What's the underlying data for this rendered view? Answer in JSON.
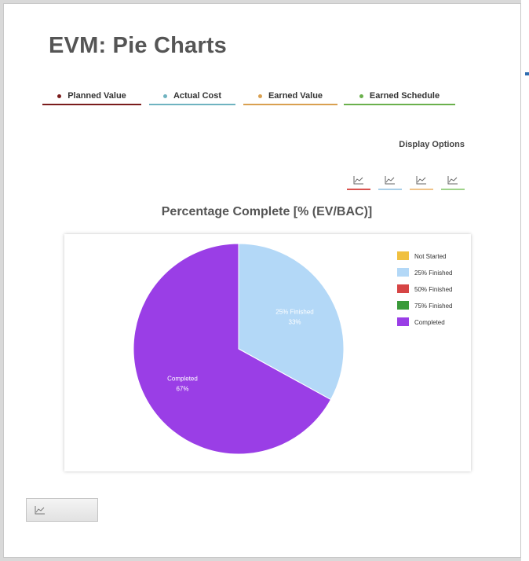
{
  "page": {
    "title": "EVM: Pie Charts"
  },
  "legend_tabs": [
    {
      "label": "Planned Value",
      "color": "#7a1c1c"
    },
    {
      "label": "Actual Cost",
      "color": "#6fb3c0"
    },
    {
      "label": "Earned Value",
      "color": "#d9a050"
    },
    {
      "label": "Earned Schedule",
      "color": "#6ab04c"
    }
  ],
  "display_options": {
    "label": "Display Options",
    "buttons": [
      {
        "icon": "line-chart-icon",
        "color": "#d9534f"
      },
      {
        "icon": "line-chart-icon",
        "color": "#a9cfe8"
      },
      {
        "icon": "line-chart-icon",
        "color": "#f0c48a"
      },
      {
        "icon": "line-chart-icon",
        "color": "#9fd38a"
      }
    ]
  },
  "footer": {
    "icon": "line-chart-icon"
  },
  "chart_data": {
    "type": "pie",
    "title": "Percentage Complete [% (EV/BAC)]",
    "categories": [
      "Not Started",
      "25% Finished",
      "50% Finished",
      "75% Finished",
      "Completed"
    ],
    "values": [
      0,
      33,
      0,
      0,
      67
    ],
    "value_labels": [
      "0%",
      "33%",
      "0%",
      "0%",
      "67%"
    ],
    "colors": [
      "#f0c040",
      "#b3d8f7",
      "#d64545",
      "#3a9a3a",
      "#9a3ee6"
    ],
    "legend_position": "top-right"
  }
}
